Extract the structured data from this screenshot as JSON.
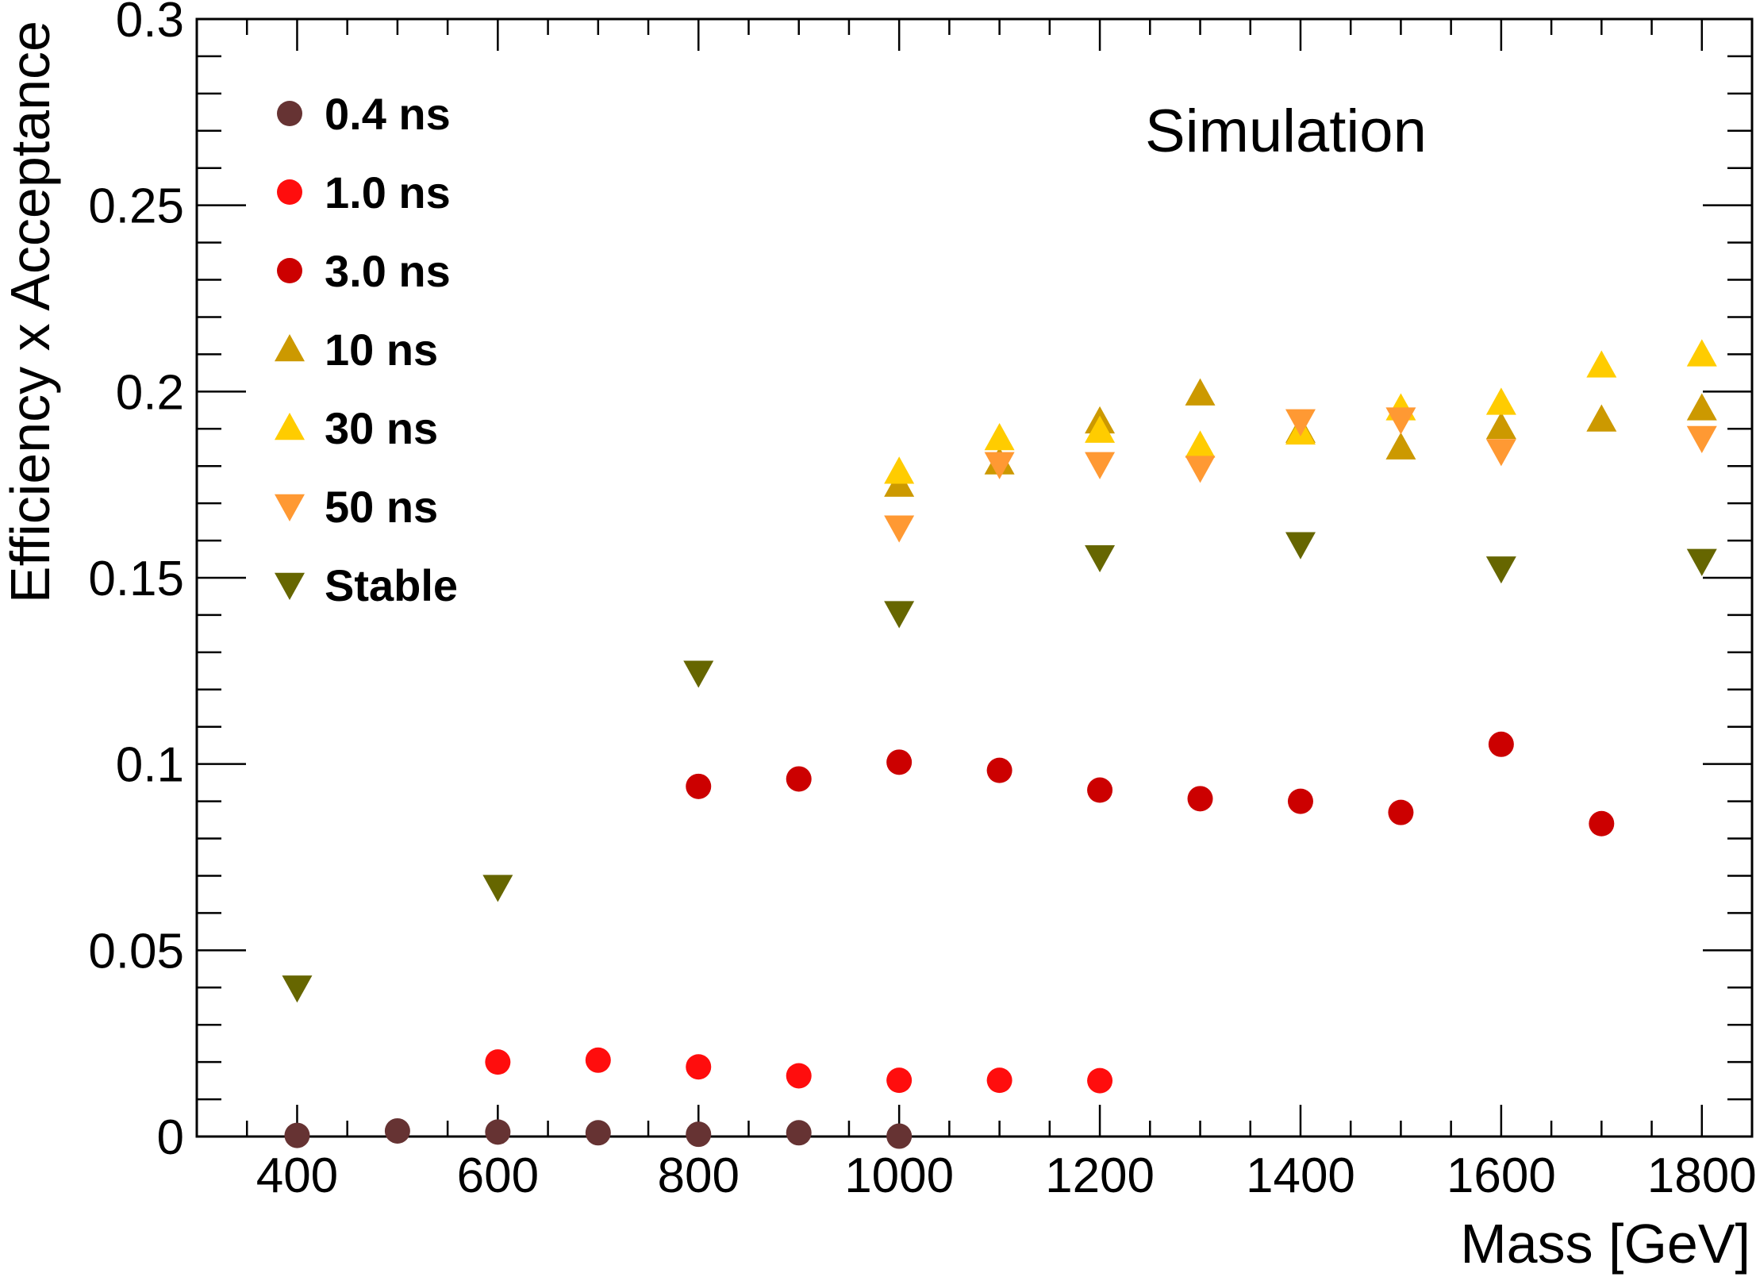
{
  "chart_data": {
    "type": "scatter",
    "xlabel": "Mass [GeV]",
    "ylabel": "Efficiency x Acceptance",
    "xlim": [
      300,
      1850
    ],
    "ylim": [
      0,
      0.3
    ],
    "x_ticks": [
      400,
      600,
      800,
      1000,
      1200,
      1400,
      1600,
      1800
    ],
    "x_tick_labels": [
      "400",
      "600",
      "800",
      "1000",
      "1200",
      "1400",
      "1600",
      "1800"
    ],
    "y_ticks": [
      0,
      0.05,
      0.1,
      0.15,
      0.2,
      0.25,
      0.3
    ],
    "y_tick_labels": [
      "0",
      "0.05",
      "0.1",
      "0.15",
      "0.2",
      "0.25",
      "0.3"
    ],
    "grid": false,
    "legend_position": "top-left",
    "annotation": "Simulation",
    "series": [
      {
        "name": "0.4 ns",
        "marker": "circle",
        "color": "#663333",
        "points": [
          [
            400,
            0.0003
          ],
          [
            500,
            0.0015
          ],
          [
            600,
            0.0012
          ],
          [
            700,
            0.001
          ],
          [
            800,
            0.0006
          ],
          [
            900,
            0.001
          ],
          [
            1000,
            0.0001
          ]
        ]
      },
      {
        "name": "1.0 ns",
        "marker": "circle",
        "color": "#ff0d0d",
        "points": [
          [
            600,
            0.02
          ],
          [
            700,
            0.0205
          ],
          [
            800,
            0.0187
          ],
          [
            900,
            0.0163
          ],
          [
            1000,
            0.0151
          ],
          [
            1100,
            0.0151
          ],
          [
            1200,
            0.015
          ]
        ]
      },
      {
        "name": "3.0 ns",
        "marker": "circle",
        "color": "#cc0000",
        "points": [
          [
            800,
            0.094
          ],
          [
            900,
            0.096
          ],
          [
            1000,
            0.1005
          ],
          [
            1100,
            0.0983
          ],
          [
            1200,
            0.093
          ],
          [
            1300,
            0.0907
          ],
          [
            1400,
            0.09
          ],
          [
            1500,
            0.087
          ],
          [
            1600,
            0.1053
          ],
          [
            1700,
            0.084
          ]
        ]
      },
      {
        "name": "10 ns",
        "marker": "triangle-up",
        "color": "#cc9900",
        "points": [
          [
            1000,
            0.175
          ],
          [
            1100,
            0.181
          ],
          [
            1200,
            0.192
          ],
          [
            1300,
            0.1995
          ],
          [
            1400,
            0.1895
          ],
          [
            1500,
            0.185
          ],
          [
            1600,
            0.1905
          ],
          [
            1700,
            0.1925
          ],
          [
            1800,
            0.1955
          ]
        ]
      },
      {
        "name": "30 ns",
        "marker": "triangle-up",
        "color": "#ffcc00",
        "points": [
          [
            1000,
            0.1785
          ],
          [
            1100,
            0.1875
          ],
          [
            1200,
            0.1895
          ],
          [
            1300,
            0.1855
          ],
          [
            1400,
            0.189
          ],
          [
            1500,
            0.1955
          ],
          [
            1600,
            0.197
          ],
          [
            1700,
            0.207
          ],
          [
            1800,
            0.21
          ]
        ]
      },
      {
        "name": "50 ns",
        "marker": "triangle-down",
        "color": "#ff9933",
        "points": [
          [
            1000,
            0.1635
          ],
          [
            1100,
            0.1805
          ],
          [
            1200,
            0.1805
          ],
          [
            1300,
            0.1795
          ],
          [
            1400,
            0.192
          ],
          [
            1500,
            0.1925
          ],
          [
            1600,
            0.184
          ],
          [
            1700,
            null
          ],
          [
            1800,
            0.1875
          ]
        ]
      },
      {
        "name": "Stable",
        "marker": "triangle-down",
        "color": "#666600",
        "points": [
          [
            400,
            0.04
          ],
          [
            600,
            0.067
          ],
          [
            800,
            0.1245
          ],
          [
            1000,
            0.1405
          ],
          [
            1200,
            0.1555
          ],
          [
            1400,
            0.159
          ],
          [
            1600,
            0.1525
          ],
          [
            1800,
            0.1545
          ]
        ]
      }
    ]
  }
}
